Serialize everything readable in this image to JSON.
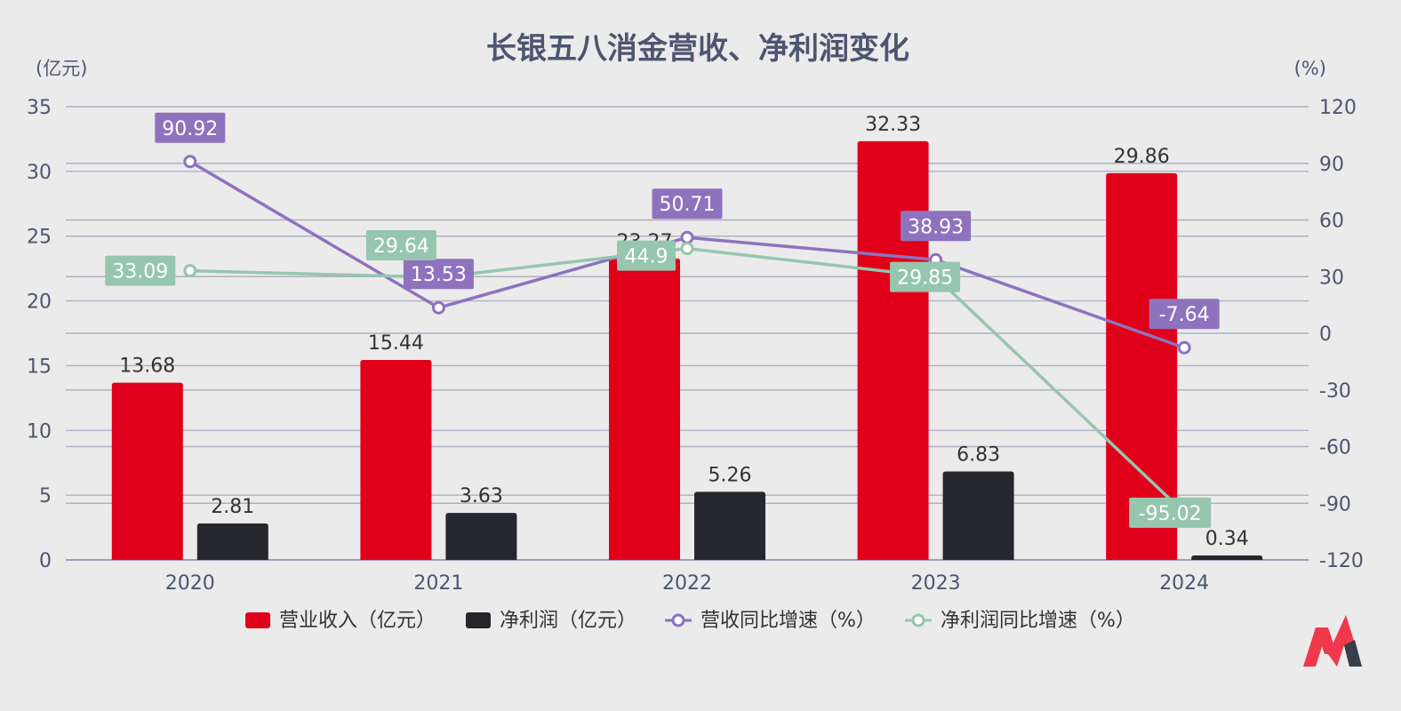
{
  "chart_data": {
    "type": "bar",
    "title": "长银五八消金营收、净利润变化",
    "y_left_unit": "(亿元)",
    "y_right_unit": "(%)",
    "ylim_left": [
      0,
      35
    ],
    "yticks_left": [
      0,
      5,
      10,
      15,
      20,
      25,
      30,
      35
    ],
    "ylim_right": [
      -120,
      120
    ],
    "yticks_right": [
      -120,
      -90,
      -60,
      -30,
      0,
      30,
      60,
      90,
      120
    ],
    "categories": [
      "2020",
      "2021",
      "2022",
      "2023",
      "2024"
    ],
    "grid": true,
    "legend_position": "bottom",
    "series": [
      {
        "name": "营业收入（亿元）",
        "type": "bar",
        "axis": "left",
        "color": "#e1001a",
        "values": [
          13.68,
          15.44,
          23.27,
          32.33,
          29.86
        ],
        "labels": [
          "13.68",
          "15.44",
          "23.27",
          "32.33",
          "29.86"
        ]
      },
      {
        "name": "净利润（亿元）",
        "type": "bar",
        "axis": "left",
        "color": "#25272d",
        "values": [
          2.81,
          3.63,
          5.26,
          6.83,
          0.34
        ],
        "labels": [
          "2.81",
          "3.63",
          "5.26",
          "6.83",
          "0.34"
        ]
      },
      {
        "name": "营收同比增速（%）",
        "type": "line",
        "axis": "right",
        "color": "#8e72be",
        "values": [
          90.92,
          13.53,
          50.71,
          38.93,
          -7.64
        ],
        "labels": [
          "90.92",
          "13.53",
          "50.71",
          "38.93",
          "-7.64"
        ]
      },
      {
        "name": "净利润同比增速（%）",
        "type": "line",
        "axis": "right",
        "color": "#96c6ae",
        "values": [
          33.09,
          29.64,
          44.9,
          29.85,
          -95.02
        ],
        "labels": [
          "33.09",
          "29.64",
          "44.9",
          "29.85",
          "-95.02"
        ]
      }
    ]
  },
  "logo": {
    "name": "brand-logo",
    "colors": [
      "#f0384c",
      "#3a3d4a"
    ]
  }
}
